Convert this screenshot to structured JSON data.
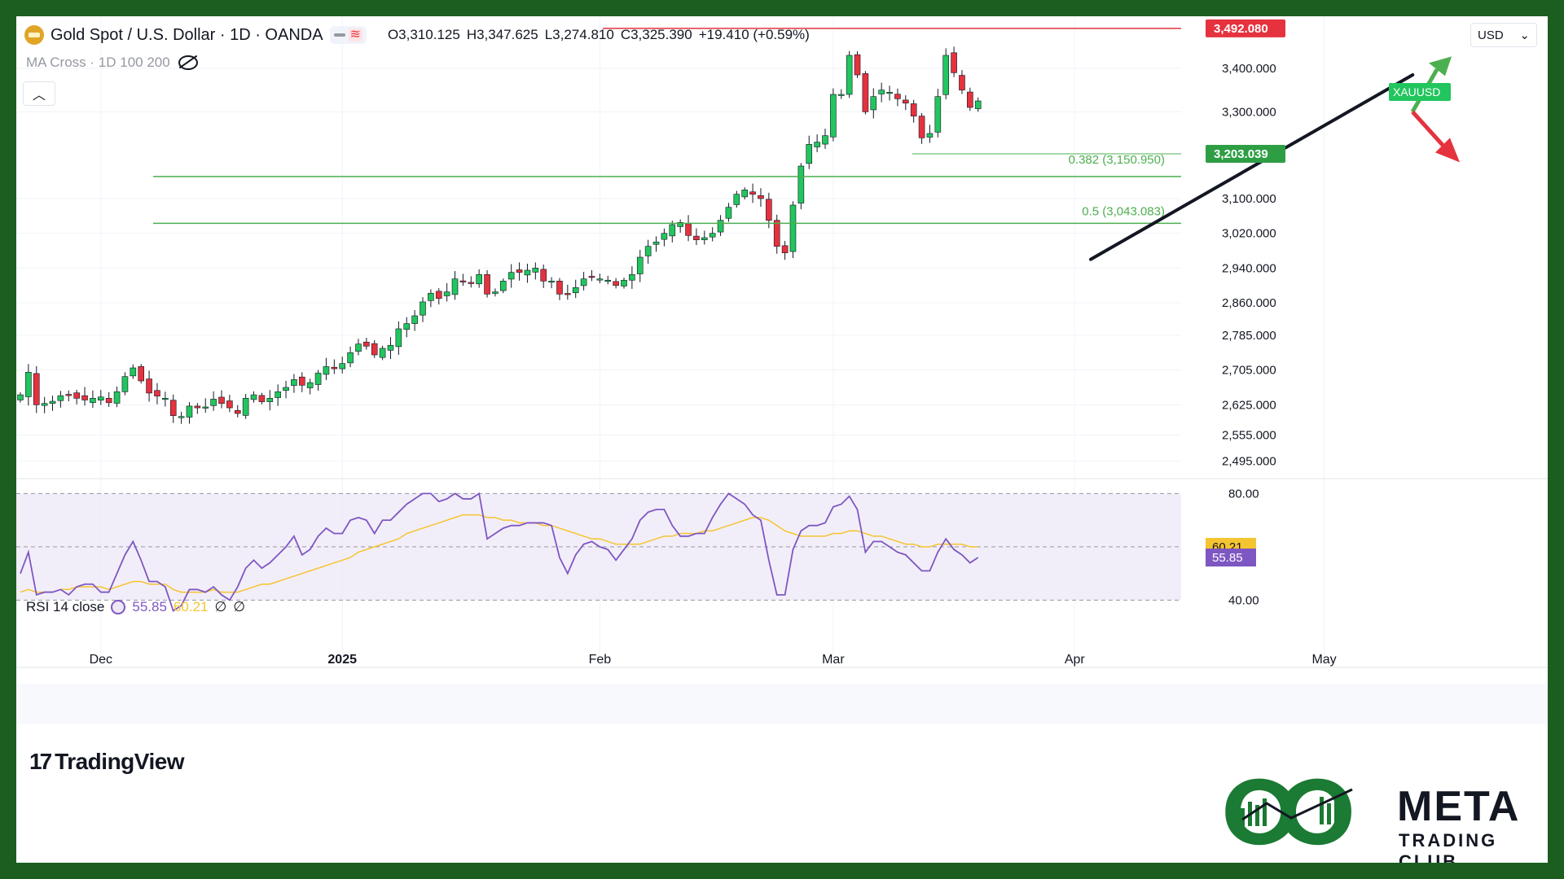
{
  "header": {
    "symbol": "Gold Spot / U.S. Dollar · 1D · OANDA",
    "open": "O3,310.125",
    "high": "H3,347.625",
    "low": "L3,274.810",
    "close": "C3,325.390",
    "change": "+19.410 (+0.59%)",
    "indicator": "MA Cross · 1D 100 200",
    "currency": "USD",
    "icons": [
      "gold-coin-icon",
      "eye-off-icon",
      "chevron-up-icon",
      "chevron-down-icon"
    ]
  },
  "rsi_header": {
    "label": "RSI 14 close",
    "rsi_value": "55.85",
    "ma_value": "60.21",
    "extra1": "∅",
    "extra2": "∅"
  },
  "branding": {
    "tv": "TradingView",
    "meta_title": "META",
    "meta_sub": "TRADING CLUB"
  },
  "colors": {
    "up": "#22c55e",
    "down": "#e5323e",
    "rsi": "#7e57c2",
    "rsi_ma": "#f5c431",
    "fib": "#4caf50",
    "resistance": "#e5323e"
  },
  "chart_data": [
    {
      "type": "candlestick",
      "ylim": [
        2470,
        3520
      ],
      "y_ticks": [
        3400,
        3300,
        3100,
        3020,
        2940,
        2860,
        2785,
        2705,
        2625,
        2555,
        2495
      ],
      "y_tick_labels": [
        "3,400.000",
        "3,300.000",
        "3,100.000",
        "3,020.000",
        "2,940.000",
        "2,860.000",
        "2,785.000",
        "2,705.000",
        "2,625.000",
        "2,555.000",
        "2,495.000"
      ],
      "x_labels": [
        {
          "label": "Dec",
          "index": 10
        },
        {
          "label": "2025",
          "index": 40
        },
        {
          "label": "Feb",
          "index": 72
        },
        {
          "label": "Mar",
          "index": 101
        },
        {
          "label": "Apr",
          "index": 131
        },
        {
          "label": "May",
          "index": 162
        }
      ],
      "closes": [
        2648,
        2700,
        2625,
        2628,
        2633,
        2646,
        2648,
        2640,
        2636,
        2640,
        2643,
        2630,
        2655,
        2690,
        2710,
        2680,
        2652,
        2645,
        2640,
        2600,
        2598,
        2622,
        2618,
        2620,
        2638,
        2628,
        2618,
        2605,
        2640,
        2648,
        2632,
        2640,
        2655,
        2665,
        2683,
        2670,
        2676,
        2698,
        2713,
        2708,
        2720,
        2745,
        2765,
        2760,
        2740,
        2755,
        2762,
        2800,
        2812,
        2830,
        2862,
        2882,
        2870,
        2885,
        2915,
        2910,
        2905,
        2925,
        2880,
        2885,
        2910,
        2930,
        2930,
        2935,
        2940,
        2910,
        2910,
        2880,
        2880,
        2895,
        2915,
        2920,
        2915,
        2912,
        2900,
        2912,
        2925,
        2965,
        2990,
        3000,
        3020,
        3040,
        3045,
        3015,
        3005,
        3010,
        3020,
        3050,
        3080,
        3110,
        3120,
        3110,
        3100,
        3050,
        2990,
        2975,
        3085,
        3175,
        3225,
        3230,
        3245,
        3340,
        3340,
        3430,
        3385,
        3300,
        3335,
        3350,
        3345,
        3330,
        3320,
        3290,
        3240,
        3250,
        3335,
        3430,
        3390,
        3350,
        3310,
        3325
      ],
      "candles_drawn": "OHLC per day, full series in script (units: USD)",
      "last_price_tag": "XAUUSD",
      "resistance": {
        "value": 3492.08,
        "label": "3,492.080"
      },
      "current_level": {
        "value": 3203.039,
        "label": "3,203.039"
      },
      "fib_levels": [
        {
          "value": 3150.95,
          "label": "0.382 (3,150.950)"
        },
        {
          "value": 3043.083,
          "label": "0.5 (3,043.083)"
        }
      ],
      "trendline": {
        "from": {
          "index": 133,
          "price": 2960
        },
        "to": {
          "index": 173,
          "price": 3385
        }
      },
      "arrows": [
        {
          "direction": "up",
          "color": "#4caf50"
        },
        {
          "direction": "down",
          "color": "#e5323e"
        }
      ]
    },
    {
      "type": "line",
      "ylim": [
        27,
        85
      ],
      "y_tick_labels": [
        "80.00",
        "40.00"
      ],
      "band": [
        50,
        70
      ],
      "series": [
        {
          "values": [
            50,
            58,
            42,
            43,
            43,
            44,
            42,
            45,
            46,
            46,
            43,
            43,
            50,
            57,
            62,
            55,
            47,
            47,
            45,
            36,
            38,
            44,
            44,
            43,
            45,
            42,
            40,
            45,
            52,
            55,
            52,
            54,
            57,
            60,
            64,
            57,
            59,
            64,
            67,
            65,
            65,
            70,
            71,
            70,
            65,
            70,
            70,
            73,
            76,
            78,
            80,
            80,
            77,
            78,
            80,
            78,
            78,
            80,
            63,
            65,
            67,
            68,
            68,
            69,
            69,
            69,
            68,
            56,
            50,
            57,
            61,
            62,
            60,
            59,
            55,
            59,
            63,
            70,
            73,
            74,
            74,
            68,
            64,
            64,
            65,
            65,
            71,
            76,
            80,
            78,
            76,
            72,
            70,
            55,
            42,
            42,
            59,
            66,
            68,
            68,
            69,
            75,
            76,
            79,
            74,
            58,
            62,
            62,
            60,
            58,
            57,
            54,
            51,
            51,
            58,
            63,
            59,
            57,
            54,
            56
          ]
        },
        {
          "values": [
            43,
            44,
            43,
            43,
            43,
            44,
            44,
            45,
            45,
            45,
            45,
            44,
            45,
            46,
            47,
            47,
            46,
            46,
            46,
            44,
            43,
            43,
            43,
            43,
            44,
            43,
            43,
            43,
            44,
            45,
            46,
            46,
            47,
            48,
            49,
            50,
            51,
            52,
            53,
            54,
            55,
            56,
            58,
            59,
            60,
            61,
            62,
            63,
            65,
            66,
            67,
            68,
            69,
            70,
            71,
            72,
            72,
            72,
            71,
            71,
            70,
            70,
            69,
            69,
            69,
            68,
            68,
            67,
            66,
            65,
            64,
            63,
            63,
            62,
            61,
            61,
            61,
            61,
            62,
            63,
            64,
            64,
            65,
            65,
            65,
            66,
            66,
            67,
            68,
            69,
            70,
            71,
            71,
            70,
            68,
            66,
            65,
            64,
            64,
            64,
            64,
            65,
            65,
            66,
            66,
            65,
            64,
            64,
            63,
            62,
            61,
            61,
            60,
            60,
            61,
            61,
            61,
            61,
            60,
            60
          ]
        }
      ]
    }
  ]
}
